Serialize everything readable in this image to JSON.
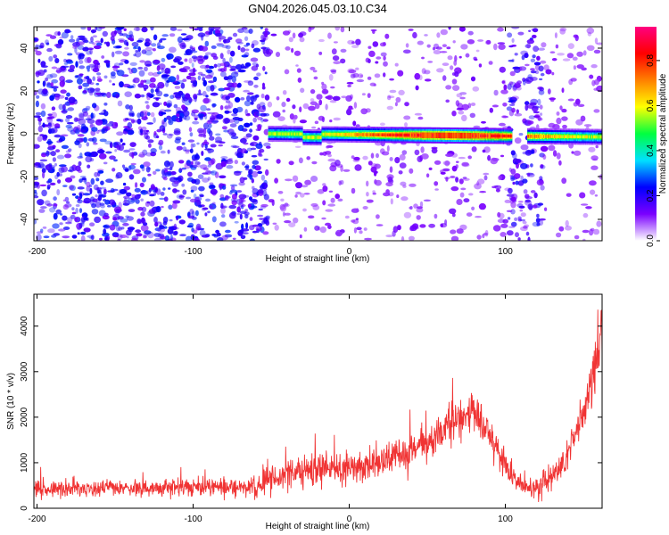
{
  "title": "GN04.2026.045.03.10.C34",
  "chart_data": [
    {
      "type": "heatmap",
      "xlabel": "Height of straight line (km)",
      "ylabel": "Frequency (Hz)",
      "xlim": [
        -202,
        162
      ],
      "ylim": [
        -50,
        50
      ],
      "xticks": [
        -200,
        -100,
        0,
        100
      ],
      "yticks": [
        -40,
        -20,
        0,
        20,
        40
      ],
      "grid": false,
      "colorbar": {
        "label": "Normalized spectral amplitude",
        "range": [
          0,
          0.95
        ],
        "ticks": [
          0.0,
          0.2,
          0.4,
          0.6,
          0.8
        ],
        "colormap": [
          "#ffffff",
          "#7a00ff",
          "#0000ff",
          "#00e0ff",
          "#00ff40",
          "#ffff00",
          "#ff8000",
          "#ff0000",
          "#ff0080"
        ]
      },
      "features": [
        {
          "name": "noise",
          "x_range": [
            -202,
            -52
          ],
          "freq_range": [
            -50,
            50
          ],
          "amplitude": 0.15
        },
        {
          "name": "noise",
          "x_range": [
            -52,
            102
          ],
          "freq_range": [
            -50,
            50
          ],
          "amplitude": 0.05
        },
        {
          "name": "noise",
          "x_range": [
            102,
            124
          ],
          "freq_range": [
            -50,
            50
          ],
          "amplitude": 0.13
        },
        {
          "name": "noise",
          "x_range": [
            124,
            162
          ],
          "freq_range": [
            -50,
            50
          ],
          "amplitude": 0.04
        },
        {
          "name": "tone",
          "x_range": [
            -52,
            162
          ],
          "freq_center": [
            0,
            -1.5
          ],
          "amplitude_peak": 0.9
        }
      ]
    },
    {
      "type": "line",
      "xlabel": "Height of straight line (km)",
      "ylabel": "SNR (10 * v/v)",
      "xlim": [
        -202,
        162
      ],
      "ylim": [
        0,
        4700
      ],
      "xticks": [
        -200,
        -100,
        0,
        100
      ],
      "yticks": [
        0,
        1000,
        2000,
        3000,
        4000
      ],
      "grid": false,
      "color": "#f03333",
      "series": [
        {
          "x": [
            -202,
            -180,
            -160,
            -140,
            -120,
            -100,
            -80,
            -60,
            -40,
            -30,
            -20,
            -10,
            0,
            10,
            20,
            30,
            40,
            50,
            60,
            65,
            70,
            75,
            80,
            85,
            90,
            95,
            100,
            105,
            110,
            115,
            120,
            125,
            130,
            135,
            140,
            145,
            150,
            155,
            160,
            162
          ],
          "y": [
            420,
            420,
            430,
            440,
            455,
            460,
            465,
            470,
            750,
            820,
            850,
            860,
            890,
            940,
            1020,
            1120,
            1250,
            1420,
            1680,
            1850,
            2000,
            2100,
            2050,
            1850,
            1600,
            1300,
            1000,
            700,
            500,
            430,
            460,
            560,
            700,
            900,
            1200,
            1600,
            2100,
            2700,
            3400,
            3900
          ],
          "spread": [
            200,
            200,
            200,
            210,
            220,
            220,
            220,
            230,
            350,
            360,
            370,
            370,
            380,
            390,
            400,
            420,
            440,
            460,
            480,
            500,
            520,
            520,
            510,
            480,
            440,
            400,
            360,
            320,
            280,
            260,
            280,
            300,
            330,
            380,
            430,
            480,
            540,
            600,
            650,
            700
          ]
        }
      ]
    }
  ]
}
